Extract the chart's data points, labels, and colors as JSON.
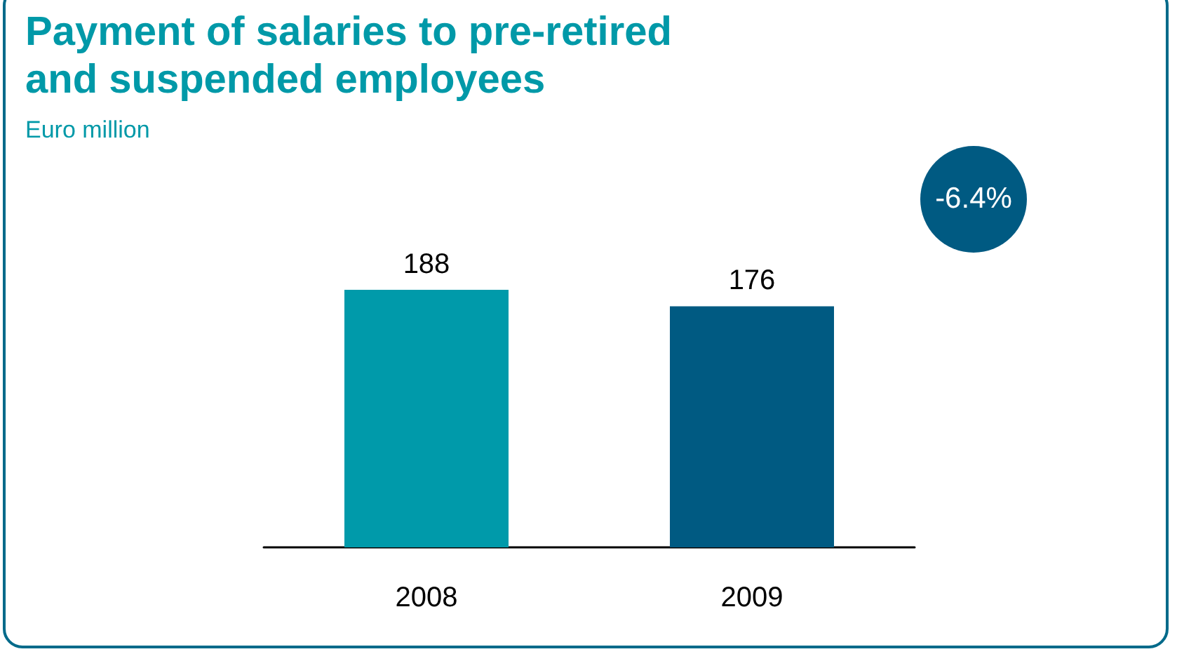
{
  "chart_data": {
    "type": "bar",
    "title": "Payment of salaries to pre-retired and suspended employees",
    "subtitle": "Euro million",
    "categories": [
      "2008",
      "2009"
    ],
    "values": [
      188,
      176
    ],
    "colors": [
      "#009aaa",
      "#005a82"
    ],
    "data_labels": true,
    "annotations": [
      "-6.4%"
    ]
  }
}
